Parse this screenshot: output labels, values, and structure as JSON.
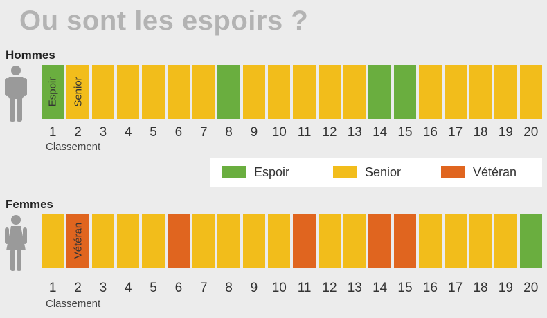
{
  "title": "Ou sont les espoirs ?",
  "colors": {
    "Espoir": "#6aae3f",
    "Senior": "#f2bd1b",
    "Vétéran": "#e0651f"
  },
  "legend": [
    {
      "key": "Espoir",
      "label": "Espoir"
    },
    {
      "key": "Senior",
      "label": "Senior"
    },
    {
      "key": "Vétéran",
      "label": "Vétéran"
    }
  ],
  "axis_caption": "Classement",
  "chart_data": {
    "type": "table",
    "title": "Ou sont les espoirs ?",
    "categories": [
      "1",
      "2",
      "3",
      "4",
      "5",
      "6",
      "7",
      "8",
      "9",
      "10",
      "11",
      "12",
      "13",
      "14",
      "15",
      "16",
      "17",
      "18",
      "19",
      "20"
    ],
    "xlabel": "Classement",
    "legend": [
      "Espoir",
      "Senior",
      "Vétéran"
    ],
    "groups": [
      {
        "name": "Hommes",
        "values": [
          "Espoir",
          "Senior",
          "Senior",
          "Senior",
          "Senior",
          "Senior",
          "Senior",
          "Espoir",
          "Senior",
          "Senior",
          "Senior",
          "Senior",
          "Senior",
          "Espoir",
          "Espoir",
          "Senior",
          "Senior",
          "Senior",
          "Senior",
          "Senior"
        ],
        "cell_labels": {
          "0": "Espoir",
          "1": "Senior"
        }
      },
      {
        "name": "Femmes",
        "values": [
          "Senior",
          "Vétéran",
          "Senior",
          "Senior",
          "Senior",
          "Vétéran",
          "Senior",
          "Senior",
          "Senior",
          "Senior",
          "Vétéran",
          "Senior",
          "Senior",
          "Vétéran",
          "Vétéran",
          "Senior",
          "Senior",
          "Senior",
          "Senior",
          "Espoir"
        ],
        "cell_labels": {
          "1": "Vétéran"
        }
      }
    ]
  }
}
